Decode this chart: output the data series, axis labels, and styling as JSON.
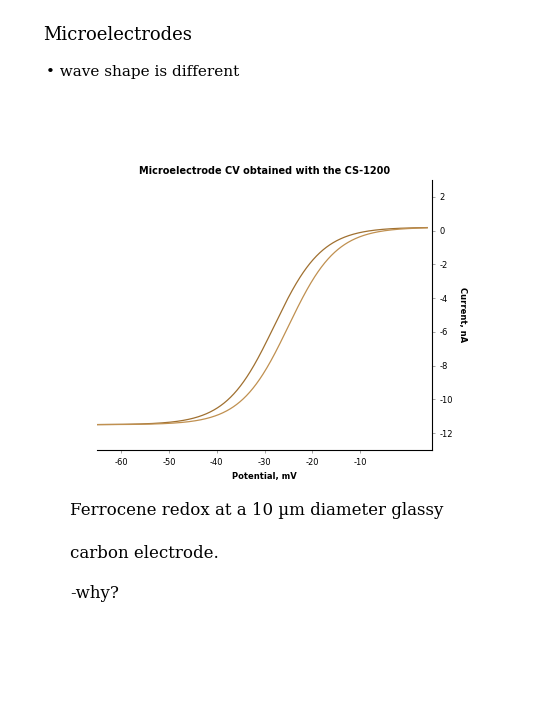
{
  "title": "Microelectrodes",
  "bullet": "wave shape is different",
  "chart_title": "Microelectrode CV obtained with the CS-1200",
  "xlabel": "Potential, mV",
  "ylabel": "Current, nA",
  "x_ticks": [
    -60,
    -50,
    -40,
    -30,
    -20,
    -10
  ],
  "x_tick_labels": [
    "-60",
    "-50",
    "-40",
    "-30",
    "-20",
    "-10"
  ],
  "y_ticks": [
    2,
    0,
    -2,
    -4,
    -6,
    -8,
    -10,
    -12
  ],
  "y_tick_labels": [
    "2",
    "0",
    "-2",
    "-4",
    "-6",
    "-8",
    "-10",
    "-12"
  ],
  "xlim": [
    -65,
    5
  ],
  "ylim": [
    -13,
    3
  ],
  "line_color1": "#a07030",
  "line_color2": "#c09050",
  "body_text1": "Ferrocene redox at a 10 µm diameter glassy",
  "body_text2": "carbon electrode.",
  "body_text3": "-why?",
  "bg_color": "#ffffff",
  "title_fontsize": 13,
  "bullet_fontsize": 11,
  "chart_title_fontsize": 7,
  "axis_label_fontsize": 6,
  "tick_fontsize": 6,
  "body_fontsize": 12
}
